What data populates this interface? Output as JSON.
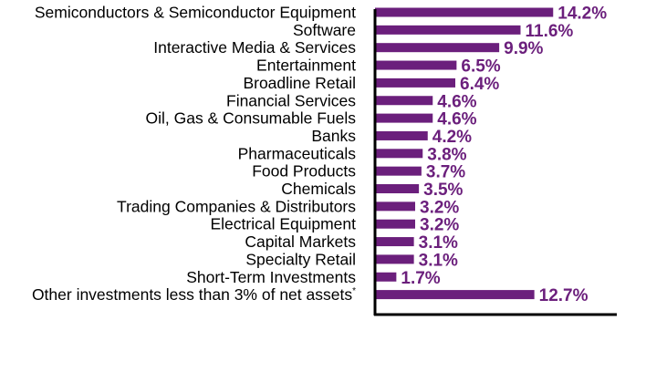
{
  "chart_data": {
    "type": "bar",
    "orientation": "horizontal",
    "categories": [
      "Semiconductors & Semiconductor Equipment",
      "Software",
      "Interactive Media & Services",
      "Entertainment",
      "Broadline Retail",
      "Financial Services",
      "Oil, Gas & Consumable Fuels",
      "Banks",
      "Pharmaceuticals",
      "Food Products",
      "Chemicals",
      "Trading Companies & Distributors",
      "Electrical Equipment",
      "Capital Markets",
      "Specialty Retail",
      "Short-Term Investments",
      "Other investments less than 3% of net assets"
    ],
    "category_footnote_marks": [
      "",
      "",
      "",
      "",
      "",
      "",
      "",
      "",
      "",
      "",
      "",
      "",
      "",
      "",
      "",
      "",
      "*"
    ],
    "values": [
      14.2,
      11.6,
      9.9,
      6.5,
      6.4,
      4.6,
      4.6,
      4.2,
      3.8,
      3.7,
      3.5,
      3.2,
      3.2,
      3.1,
      3.1,
      1.7,
      12.7
    ],
    "value_labels": [
      "14.2%",
      "11.6%",
      "9.9%",
      "6.5%",
      "6.4%",
      "4.6%",
      "4.6%",
      "4.2%",
      "3.8%",
      "3.7%",
      "3.5%",
      "3.2%",
      "3.2%",
      "3.1%",
      "3.1%",
      "1.7%",
      "12.7%"
    ],
    "xlim": [
      0,
      20
    ],
    "grid": false,
    "legend": "none",
    "colors": {
      "bar": "#6b1f7c",
      "value_label": "#6b1f7c",
      "axis": "#000000",
      "category_label": "#000000"
    }
  }
}
